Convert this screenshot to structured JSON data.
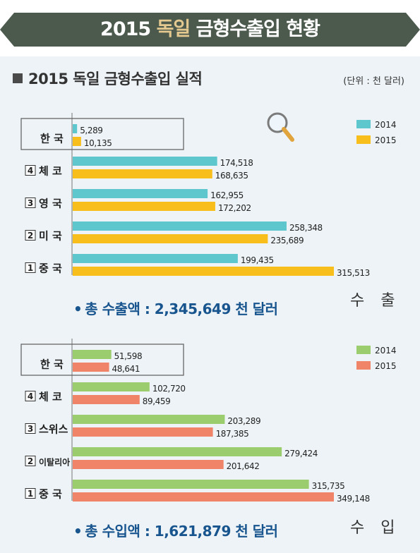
{
  "banner": {
    "title_pre": "2015 ",
    "title_highlight": "독일",
    "title_post": " 금형수출입 현황"
  },
  "subtitle": "2015 독일 금형수출입 실적",
  "unit": "(단위 : 천 달러)",
  "colors": {
    "banner": "#4c5a4d",
    "export_2014": "#5ec6cd",
    "export_2015": "#f8be1c",
    "import_2014": "#9bcc6e",
    "import_2015": "#ef8469",
    "total_text": "#18558f"
  },
  "chart_data": [
    {
      "type": "bar",
      "orientation": "horizontal",
      "section_label": "수 출",
      "categories": [
        "한 국",
        "체 코",
        "영 국",
        "미 국",
        "중 국"
      ],
      "ranks": [
        "",
        "4",
        "3",
        "2",
        "1"
      ],
      "series": [
        {
          "name": "2014",
          "values": [
            5289,
            174518,
            162955,
            258348,
            199435
          ]
        },
        {
          "name": "2015",
          "values": [
            10135,
            168635,
            172202,
            235689,
            315513
          ]
        }
      ],
      "value_labels": [
        [
          "5,289",
          "174,518",
          "162,955",
          "258,348",
          "199,435"
        ],
        [
          "10,135",
          "168,635",
          "172,202",
          "235,689",
          "315,513"
        ]
      ],
      "legend": "top-right",
      "total_text": "총 수출액 : 2,345,649 천 달러"
    },
    {
      "type": "bar",
      "orientation": "horizontal",
      "section_label": "수 입",
      "categories": [
        "한 국",
        "체 코",
        "스위스",
        "이탈리아",
        "중 국"
      ],
      "ranks": [
        "",
        "4",
        "3",
        "2",
        "1"
      ],
      "series": [
        {
          "name": "2014",
          "values": [
            51598,
            102720,
            203289,
            279424,
            315735
          ]
        },
        {
          "name": "2015",
          "values": [
            48641,
            89459,
            187385,
            201642,
            349148
          ]
        }
      ],
      "value_labels": [
        [
          "51,598",
          "102,720",
          "203,289",
          "279,424",
          "315,735"
        ],
        [
          "48,641",
          "89,459",
          "187,385",
          "201,642",
          "349,148"
        ]
      ],
      "legend": "top-right",
      "total_text": "총 수입액 : 1,621,879 천 달러"
    }
  ]
}
